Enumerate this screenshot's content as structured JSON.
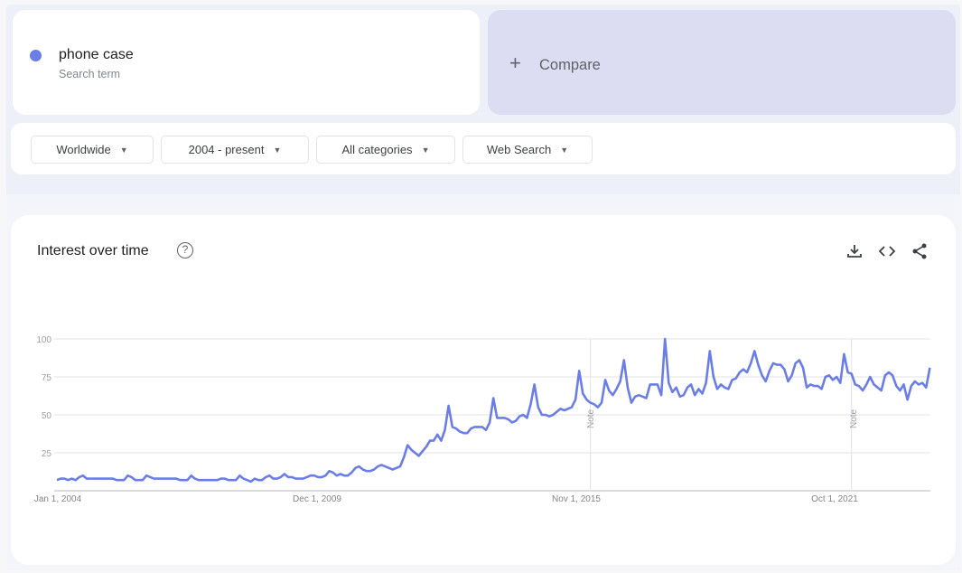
{
  "search_term": {
    "label": "phone case",
    "sublabel": "Search term",
    "color": "#6b7ee8"
  },
  "compare": {
    "icon": "plus-icon",
    "label": "Compare"
  },
  "filters": [
    {
      "label": "Worldwide"
    },
    {
      "label": "2004 - present"
    },
    {
      "label": "All categories"
    },
    {
      "label": "Web Search"
    }
  ],
  "chart_card": {
    "title": "Interest over time",
    "help_icon": "?",
    "actions": [
      "download-icon",
      "embed-code-icon",
      "share-icon"
    ]
  },
  "chart_data": {
    "type": "line",
    "start": "Jan 2004",
    "frequency": "monthly",
    "ylim": [
      0,
      100
    ],
    "yticks": [
      25,
      50,
      75,
      100
    ],
    "xtick_labels": [
      "Jan 1, 2004",
      "Dec 1, 2009",
      "Nov 1, 2015",
      "Oct 1, 2021"
    ],
    "annotations": [
      {
        "label": "Note",
        "at": "Nov 1, 2015"
      },
      {
        "label": "Note",
        "at": "Oct 1, 2021"
      }
    ],
    "grid": true,
    "color": "#6b7ee8",
    "series": [
      {
        "name": "phone case",
        "values": [
          7,
          8,
          8,
          7,
          8,
          7,
          9,
          10,
          8,
          8,
          8,
          8,
          8,
          8,
          8,
          8,
          7,
          7,
          7,
          10,
          9,
          7,
          7,
          7,
          10,
          9,
          8,
          8,
          8,
          8,
          8,
          8,
          8,
          7,
          7,
          7,
          10,
          8,
          7,
          7,
          7,
          7,
          7,
          7,
          8,
          8,
          7,
          7,
          7,
          10,
          8,
          7,
          6,
          8,
          7,
          7,
          9,
          10,
          8,
          8,
          9,
          11,
          9,
          9,
          8,
          8,
          8,
          9,
          10,
          10,
          9,
          9,
          10,
          13,
          12,
          10,
          11,
          10,
          10,
          12,
          15,
          16,
          14,
          13,
          13,
          14,
          16,
          17,
          16,
          15,
          14,
          15,
          16,
          22,
          30,
          27,
          25,
          23,
          26,
          29,
          33,
          33,
          37,
          33,
          40,
          56,
          42,
          41,
          39,
          38,
          38,
          41,
          42,
          42,
          42,
          40,
          45,
          61,
          48,
          48,
          48,
          47,
          45,
          46,
          49,
          50,
          48,
          57,
          70,
          55,
          50,
          50,
          49,
          50,
          52,
          54,
          53,
          54,
          55,
          60,
          79,
          64,
          60,
          58,
          57,
          55,
          58,
          73,
          66,
          63,
          67,
          72,
          86,
          68,
          58,
          62,
          63,
          62,
          61,
          70,
          70,
          70,
          63,
          100,
          71,
          65,
          68,
          62,
          63,
          68,
          70,
          63,
          67,
          64,
          71,
          92,
          75,
          67,
          70,
          68,
          67,
          73,
          74,
          78,
          80,
          78,
          84,
          92,
          83,
          76,
          72,
          79,
          84,
          83,
          83,
          80,
          72,
          76,
          84,
          86,
          81,
          68,
          70,
          69,
          69,
          67,
          75,
          76,
          73,
          75,
          71,
          90,
          78,
          77,
          70,
          69,
          66,
          70,
          75,
          70,
          68,
          66,
          76,
          78,
          76,
          69,
          66,
          70,
          60,
          69,
          72,
          70,
          71,
          68,
          81
        ]
      }
    ]
  }
}
